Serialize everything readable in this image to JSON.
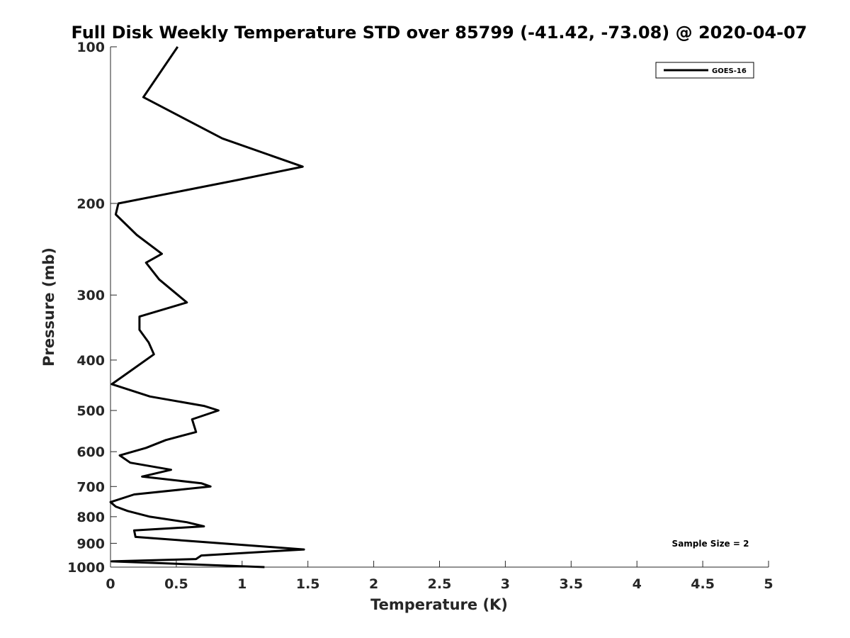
{
  "chart_data": {
    "type": "line",
    "title": "Full Disk Weekly Temperature STD over 85799 (-41.42, -73.08) @ 2020-04-07",
    "xlabel": "Temperature (K)",
    "ylabel": "Pressure (mb)",
    "xlim": [
      0,
      5
    ],
    "ylim": [
      100,
      1000
    ],
    "y_scale": "log",
    "y_reversed": true,
    "x_ticks": [
      "0",
      "0.5",
      "1",
      "1.5",
      "2",
      "2.5",
      "3",
      "3.5",
      "4",
      "4.5",
      "5"
    ],
    "y_ticks": [
      "100",
      "200",
      "300",
      "400",
      "500",
      "600",
      "700",
      "800",
      "900",
      "1000"
    ],
    "grid": false,
    "legend_position": "top-right",
    "annotation": "Sample Size = 2",
    "series": [
      {
        "name": "GOES-16",
        "color": "#000000",
        "points": [
          [
            0.51,
            100
          ],
          [
            0.25,
            125
          ],
          [
            0.85,
            150
          ],
          [
            1.46,
            170
          ],
          [
            0.98,
            180
          ],
          [
            0.06,
            200
          ],
          [
            0.04,
            210
          ],
          [
            0.2,
            230
          ],
          [
            0.39,
            250
          ],
          [
            0.27,
            260
          ],
          [
            0.37,
            280
          ],
          [
            0.58,
            310
          ],
          [
            0.22,
            330
          ],
          [
            0.22,
            350
          ],
          [
            0.29,
            370
          ],
          [
            0.33,
            390
          ],
          [
            0.15,
            420
          ],
          [
            0.01,
            445
          ],
          [
            0.3,
            470
          ],
          [
            0.71,
            490
          ],
          [
            0.82,
            500
          ],
          [
            0.62,
            520
          ],
          [
            0.65,
            550
          ],
          [
            0.42,
            570
          ],
          [
            0.27,
            590
          ],
          [
            0.07,
            610
          ],
          [
            0.15,
            630
          ],
          [
            0.46,
            650
          ],
          [
            0.24,
            670
          ],
          [
            0.69,
            690
          ],
          [
            0.76,
            700
          ],
          [
            0.18,
            725
          ],
          [
            0.0,
            750
          ],
          [
            0.04,
            765
          ],
          [
            0.13,
            780
          ],
          [
            0.3,
            800
          ],
          [
            0.58,
            820
          ],
          [
            0.71,
            835
          ],
          [
            0.18,
            850
          ],
          [
            0.19,
            875
          ],
          [
            1.47,
            925
          ],
          [
            0.69,
            950
          ],
          [
            0.65,
            965
          ],
          [
            0.01,
            975
          ],
          [
            1.17,
            1000
          ]
        ]
      }
    ]
  }
}
